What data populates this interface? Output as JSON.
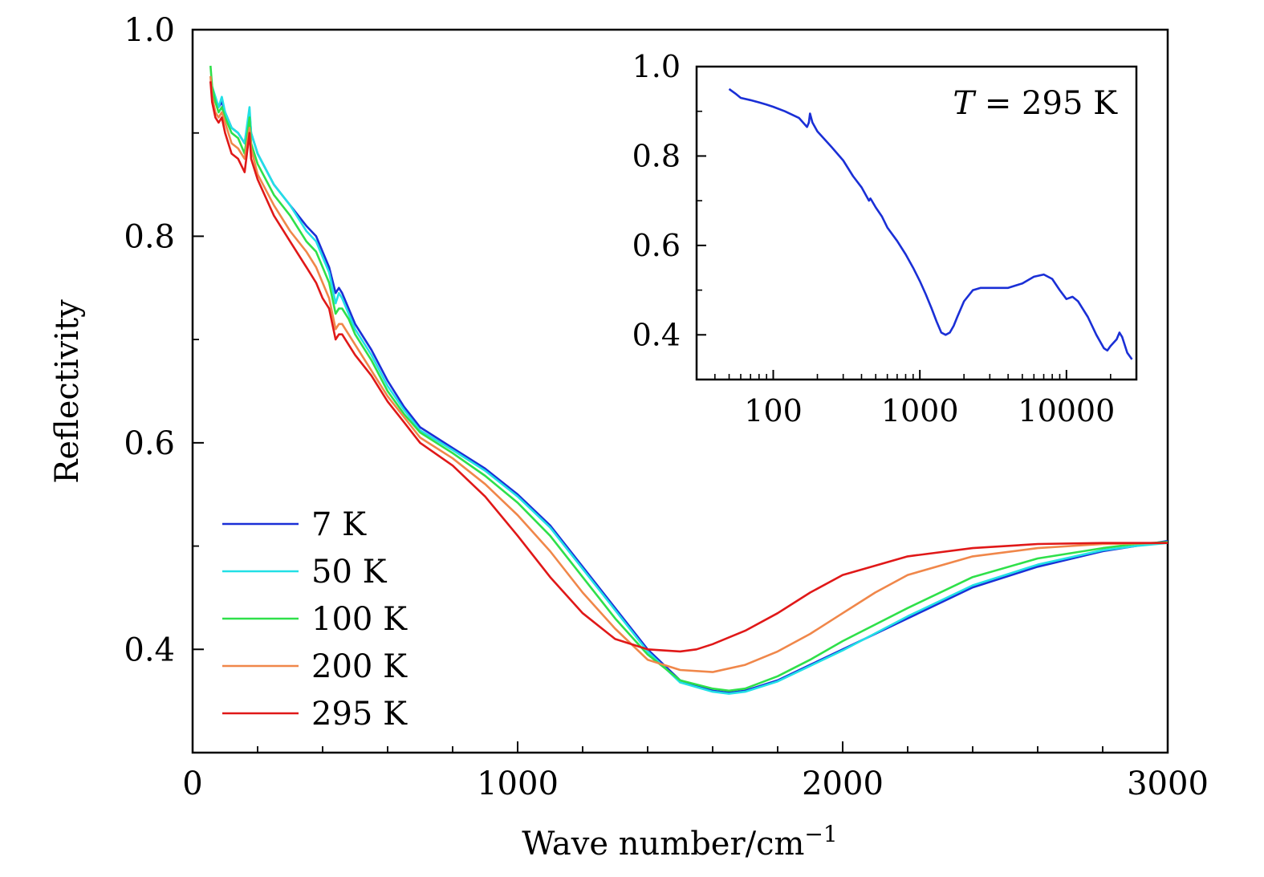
{
  "chart_data": [
    {
      "type": "line",
      "title": "",
      "xlabel": "Wave number/cm",
      "xlabel_exponent": "−1",
      "ylabel": "Reflectivity",
      "xlim": [
        0,
        3000
      ],
      "ylim": [
        0.3,
        1.0
      ],
      "xticks": [
        0,
        1000,
        2000,
        3000
      ],
      "yticks": [
        0.4,
        0.6,
        0.8,
        1.0
      ],
      "xtick_labels": [
        "0",
        "1000",
        "2000",
        "3000"
      ],
      "ytick_labels": [
        "0.4",
        "0.6",
        "0.8",
        "1.0"
      ],
      "grid": false,
      "legend_position": "bottom-left",
      "series": [
        {
          "name": "7 K",
          "color": "#1a2fd6",
          "x": [
            55,
            60,
            70,
            80,
            90,
            100,
            120,
            140,
            160,
            175,
            180,
            200,
            250,
            300,
            350,
            380,
            400,
            420,
            440,
            450,
            460,
            480,
            500,
            550,
            600,
            650,
            700,
            800,
            900,
            1000,
            1100,
            1200,
            1300,
            1400,
            1500,
            1600,
            1650,
            1700,
            1800,
            1900,
            2000,
            2200,
            2400,
            2600,
            2800,
            2900,
            3000
          ],
          "y": [
            0.95,
            0.94,
            0.93,
            0.925,
            0.93,
            0.92,
            0.905,
            0.9,
            0.89,
            0.92,
            0.9,
            0.88,
            0.85,
            0.83,
            0.81,
            0.8,
            0.785,
            0.77,
            0.745,
            0.75,
            0.745,
            0.73,
            0.715,
            0.69,
            0.66,
            0.635,
            0.615,
            0.595,
            0.575,
            0.55,
            0.52,
            0.48,
            0.44,
            0.4,
            0.37,
            0.36,
            0.358,
            0.36,
            0.37,
            0.385,
            0.4,
            0.43,
            0.46,
            0.48,
            0.495,
            0.5,
            0.505
          ]
        },
        {
          "name": "50 K",
          "color": "#22e0e6",
          "x": [
            55,
            60,
            70,
            80,
            90,
            100,
            120,
            140,
            160,
            175,
            180,
            200,
            250,
            300,
            350,
            380,
            400,
            420,
            440,
            450,
            460,
            480,
            500,
            550,
            600,
            650,
            700,
            800,
            900,
            1000,
            1100,
            1200,
            1300,
            1400,
            1500,
            1600,
            1650,
            1700,
            1800,
            1900,
            2000,
            2200,
            2400,
            2600,
            2800,
            2900,
            3000
          ],
          "y": [
            0.955,
            0.945,
            0.935,
            0.925,
            0.935,
            0.92,
            0.905,
            0.9,
            0.89,
            0.925,
            0.9,
            0.88,
            0.85,
            0.83,
            0.805,
            0.795,
            0.78,
            0.765,
            0.735,
            0.745,
            0.74,
            0.725,
            0.71,
            0.685,
            0.655,
            0.632,
            0.612,
            0.593,
            0.573,
            0.548,
            0.518,
            0.478,
            0.438,
            0.398,
            0.368,
            0.359,
            0.357,
            0.359,
            0.369,
            0.384,
            0.399,
            0.432,
            0.462,
            0.482,
            0.496,
            0.5,
            0.503
          ]
        },
        {
          "name": "100 K",
          "color": "#2fe04a",
          "x": [
            55,
            60,
            70,
            80,
            90,
            100,
            120,
            140,
            160,
            175,
            180,
            200,
            250,
            300,
            350,
            380,
            400,
            420,
            440,
            450,
            460,
            480,
            500,
            550,
            600,
            650,
            700,
            800,
            900,
            1000,
            1100,
            1200,
            1300,
            1400,
            1500,
            1600,
            1650,
            1700,
            1800,
            1900,
            2000,
            2200,
            2400,
            2600,
            2800,
            2900,
            3000
          ],
          "y": [
            0.965,
            0.945,
            0.93,
            0.92,
            0.925,
            0.915,
            0.9,
            0.895,
            0.88,
            0.915,
            0.89,
            0.87,
            0.84,
            0.82,
            0.795,
            0.785,
            0.77,
            0.755,
            0.725,
            0.73,
            0.73,
            0.72,
            0.705,
            0.68,
            0.65,
            0.628,
            0.61,
            0.59,
            0.568,
            0.542,
            0.51,
            0.47,
            0.43,
            0.395,
            0.37,
            0.362,
            0.36,
            0.362,
            0.374,
            0.39,
            0.408,
            0.44,
            0.47,
            0.488,
            0.498,
            0.502,
            0.504
          ]
        },
        {
          "name": "200 K",
          "color": "#f0874a",
          "x": [
            55,
            60,
            70,
            80,
            90,
            100,
            120,
            140,
            160,
            175,
            180,
            200,
            250,
            300,
            350,
            380,
            400,
            420,
            440,
            450,
            460,
            480,
            500,
            550,
            600,
            650,
            700,
            800,
            900,
            1000,
            1100,
            1200,
            1300,
            1400,
            1500,
            1600,
            1700,
            1800,
            1900,
            2000,
            2100,
            2200,
            2400,
            2600,
            2800,
            3000
          ],
          "y": [
            0.955,
            0.935,
            0.92,
            0.915,
            0.92,
            0.91,
            0.89,
            0.885,
            0.875,
            0.905,
            0.885,
            0.86,
            0.83,
            0.805,
            0.785,
            0.77,
            0.755,
            0.74,
            0.71,
            0.715,
            0.715,
            0.705,
            0.695,
            0.67,
            0.645,
            0.625,
            0.605,
            0.585,
            0.56,
            0.53,
            0.495,
            0.455,
            0.42,
            0.39,
            0.38,
            0.378,
            0.385,
            0.398,
            0.415,
            0.435,
            0.455,
            0.472,
            0.49,
            0.498,
            0.502,
            0.503
          ]
        },
        {
          "name": "295 K",
          "color": "#e01818",
          "x": [
            55,
            60,
            70,
            80,
            90,
            100,
            120,
            140,
            160,
            175,
            180,
            200,
            250,
            300,
            350,
            380,
            400,
            420,
            440,
            450,
            460,
            480,
            500,
            550,
            600,
            650,
            700,
            800,
            900,
            1000,
            1100,
            1200,
            1300,
            1400,
            1500,
            1550,
            1600,
            1700,
            1800,
            1900,
            2000,
            2200,
            2400,
            2600,
            2800,
            3000
          ],
          "y": [
            0.95,
            0.93,
            0.915,
            0.91,
            0.915,
            0.9,
            0.88,
            0.875,
            0.862,
            0.9,
            0.875,
            0.855,
            0.82,
            0.795,
            0.77,
            0.755,
            0.74,
            0.73,
            0.7,
            0.705,
            0.705,
            0.695,
            0.685,
            0.665,
            0.64,
            0.62,
            0.6,
            0.578,
            0.548,
            0.51,
            0.47,
            0.435,
            0.41,
            0.4,
            0.398,
            0.4,
            0.405,
            0.418,
            0.435,
            0.455,
            0.472,
            0.49,
            0.498,
            0.502,
            0.503,
            0.503
          ]
        }
      ]
    },
    {
      "type": "line",
      "title": "",
      "xscale": "log",
      "xlim": [
        30,
        30000
      ],
      "ylim": [
        0.3,
        1.0
      ],
      "xticks": [
        100,
        1000,
        10000
      ],
      "yticks": [
        0.4,
        0.6,
        0.8,
        1.0
      ],
      "xtick_labels": [
        "100",
        "1000",
        "10000"
      ],
      "ytick_labels": [
        "0.4",
        "0.6",
        "0.8",
        "1.0"
      ],
      "annotation": "T = 295 K",
      "series": [
        {
          "color": "#1a2fd6",
          "x": [
            50,
            55,
            60,
            70,
            80,
            90,
            100,
            120,
            150,
            170,
            175,
            178,
            185,
            200,
            250,
            300,
            350,
            400,
            450,
            460,
            470,
            500,
            550,
            600,
            700,
            800,
            900,
            1000,
            1100,
            1200,
            1300,
            1400,
            1500,
            1600,
            1700,
            1800,
            2000,
            2300,
            2600,
            3000,
            4000,
            5000,
            6000,
            7000,
            8000,
            9000,
            10000,
            11000,
            12000,
            14000,
            16000,
            18000,
            19000,
            20000,
            22000,
            23000,
            24000,
            26000,
            28000
          ],
          "y": [
            0.95,
            0.94,
            0.93,
            0.925,
            0.92,
            0.915,
            0.91,
            0.9,
            0.885,
            0.865,
            0.875,
            0.895,
            0.875,
            0.855,
            0.82,
            0.79,
            0.755,
            0.73,
            0.7,
            0.705,
            0.7,
            0.685,
            0.665,
            0.64,
            0.61,
            0.58,
            0.55,
            0.52,
            0.49,
            0.46,
            0.43,
            0.405,
            0.4,
            0.405,
            0.42,
            0.44,
            0.475,
            0.5,
            0.505,
            0.505,
            0.505,
            0.515,
            0.53,
            0.535,
            0.525,
            0.5,
            0.48,
            0.485,
            0.475,
            0.44,
            0.4,
            0.37,
            0.365,
            0.375,
            0.39,
            0.405,
            0.395,
            0.36,
            0.345
          ]
        }
      ]
    }
  ]
}
